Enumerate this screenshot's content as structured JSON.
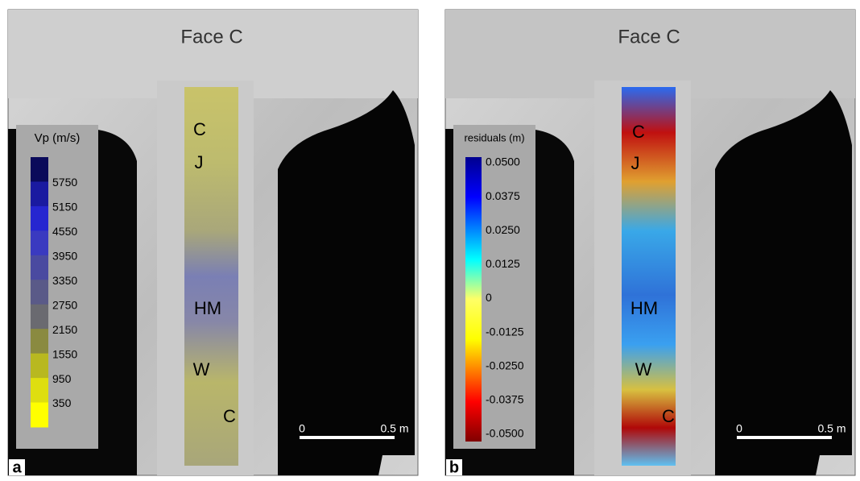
{
  "panels": [
    {
      "letter": "a",
      "face_title": "Face C",
      "colorbar_title": "Vp (m/s)",
      "colorbar_ticks": [
        "5750",
        "5150",
        "4550",
        "3950",
        "3350",
        "2750",
        "2150",
        "1550",
        "950",
        "350"
      ],
      "annotations": [
        "C",
        "J",
        "HM",
        "W",
        "C"
      ],
      "scale_bar": {
        "start": "0",
        "end": "0.5 m"
      }
    },
    {
      "letter": "b",
      "face_title": "Face C",
      "colorbar_title": "residuals (m)",
      "colorbar_ticks": [
        "0.0500",
        "0.0375",
        "0.0250",
        "0.0125",
        "0",
        "-0.0125",
        "-0.0250",
        "-0.0375",
        "-0.0500"
      ],
      "annotations": [
        "C",
        "J",
        "HM",
        "W",
        "C"
      ],
      "scale_bar": {
        "start": "0",
        "end": "0.5 m"
      }
    }
  ]
}
